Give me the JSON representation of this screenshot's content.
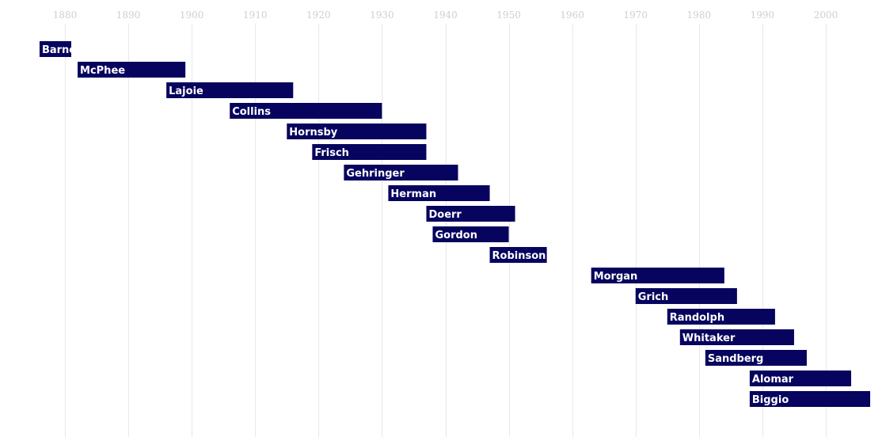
{
  "chart_data": {
    "type": "bar",
    "orientation": "horizontal-range",
    "title": "",
    "xlabel": "",
    "ylabel": "",
    "xlim": [
      1873,
      2008
    ],
    "x_ticks": [
      1880,
      1890,
      1900,
      1910,
      1920,
      1930,
      1940,
      1950,
      1960,
      1970,
      1980,
      1990,
      2000
    ],
    "grid": "vertical",
    "legend": "none",
    "bar_color": "#06045e",
    "label_color": "#ffffff",
    "series": [
      {
        "label": "Barnes",
        "start": 1876,
        "end": 1881
      },
      {
        "label": "McPhee",
        "start": 1882,
        "end": 1899
      },
      {
        "label": "Lajoie",
        "start": 1896,
        "end": 1916
      },
      {
        "label": "Collins",
        "start": 1906,
        "end": 1930
      },
      {
        "label": "Hornsby",
        "start": 1915,
        "end": 1937
      },
      {
        "label": "Frisch",
        "start": 1919,
        "end": 1937
      },
      {
        "label": "Gehringer",
        "start": 1924,
        "end": 1942
      },
      {
        "label": "Herman",
        "start": 1931,
        "end": 1947
      },
      {
        "label": "Doerr",
        "start": 1937,
        "end": 1951
      },
      {
        "label": "Gordon",
        "start": 1938,
        "end": 1950
      },
      {
        "label": "Robinson",
        "start": 1947,
        "end": 1956
      },
      {
        "label": "Morgan",
        "start": 1963,
        "end": 1984
      },
      {
        "label": "Grich",
        "start": 1970,
        "end": 1986
      },
      {
        "label": "Randolph",
        "start": 1975,
        "end": 1992
      },
      {
        "label": "Whitaker",
        "start": 1977,
        "end": 1995
      },
      {
        "label": "Sandberg",
        "start": 1981,
        "end": 1997
      },
      {
        "label": "Alomar",
        "start": 1988,
        "end": 2004
      },
      {
        "label": "Biggio",
        "start": 1988,
        "end": 2007
      }
    ]
  }
}
